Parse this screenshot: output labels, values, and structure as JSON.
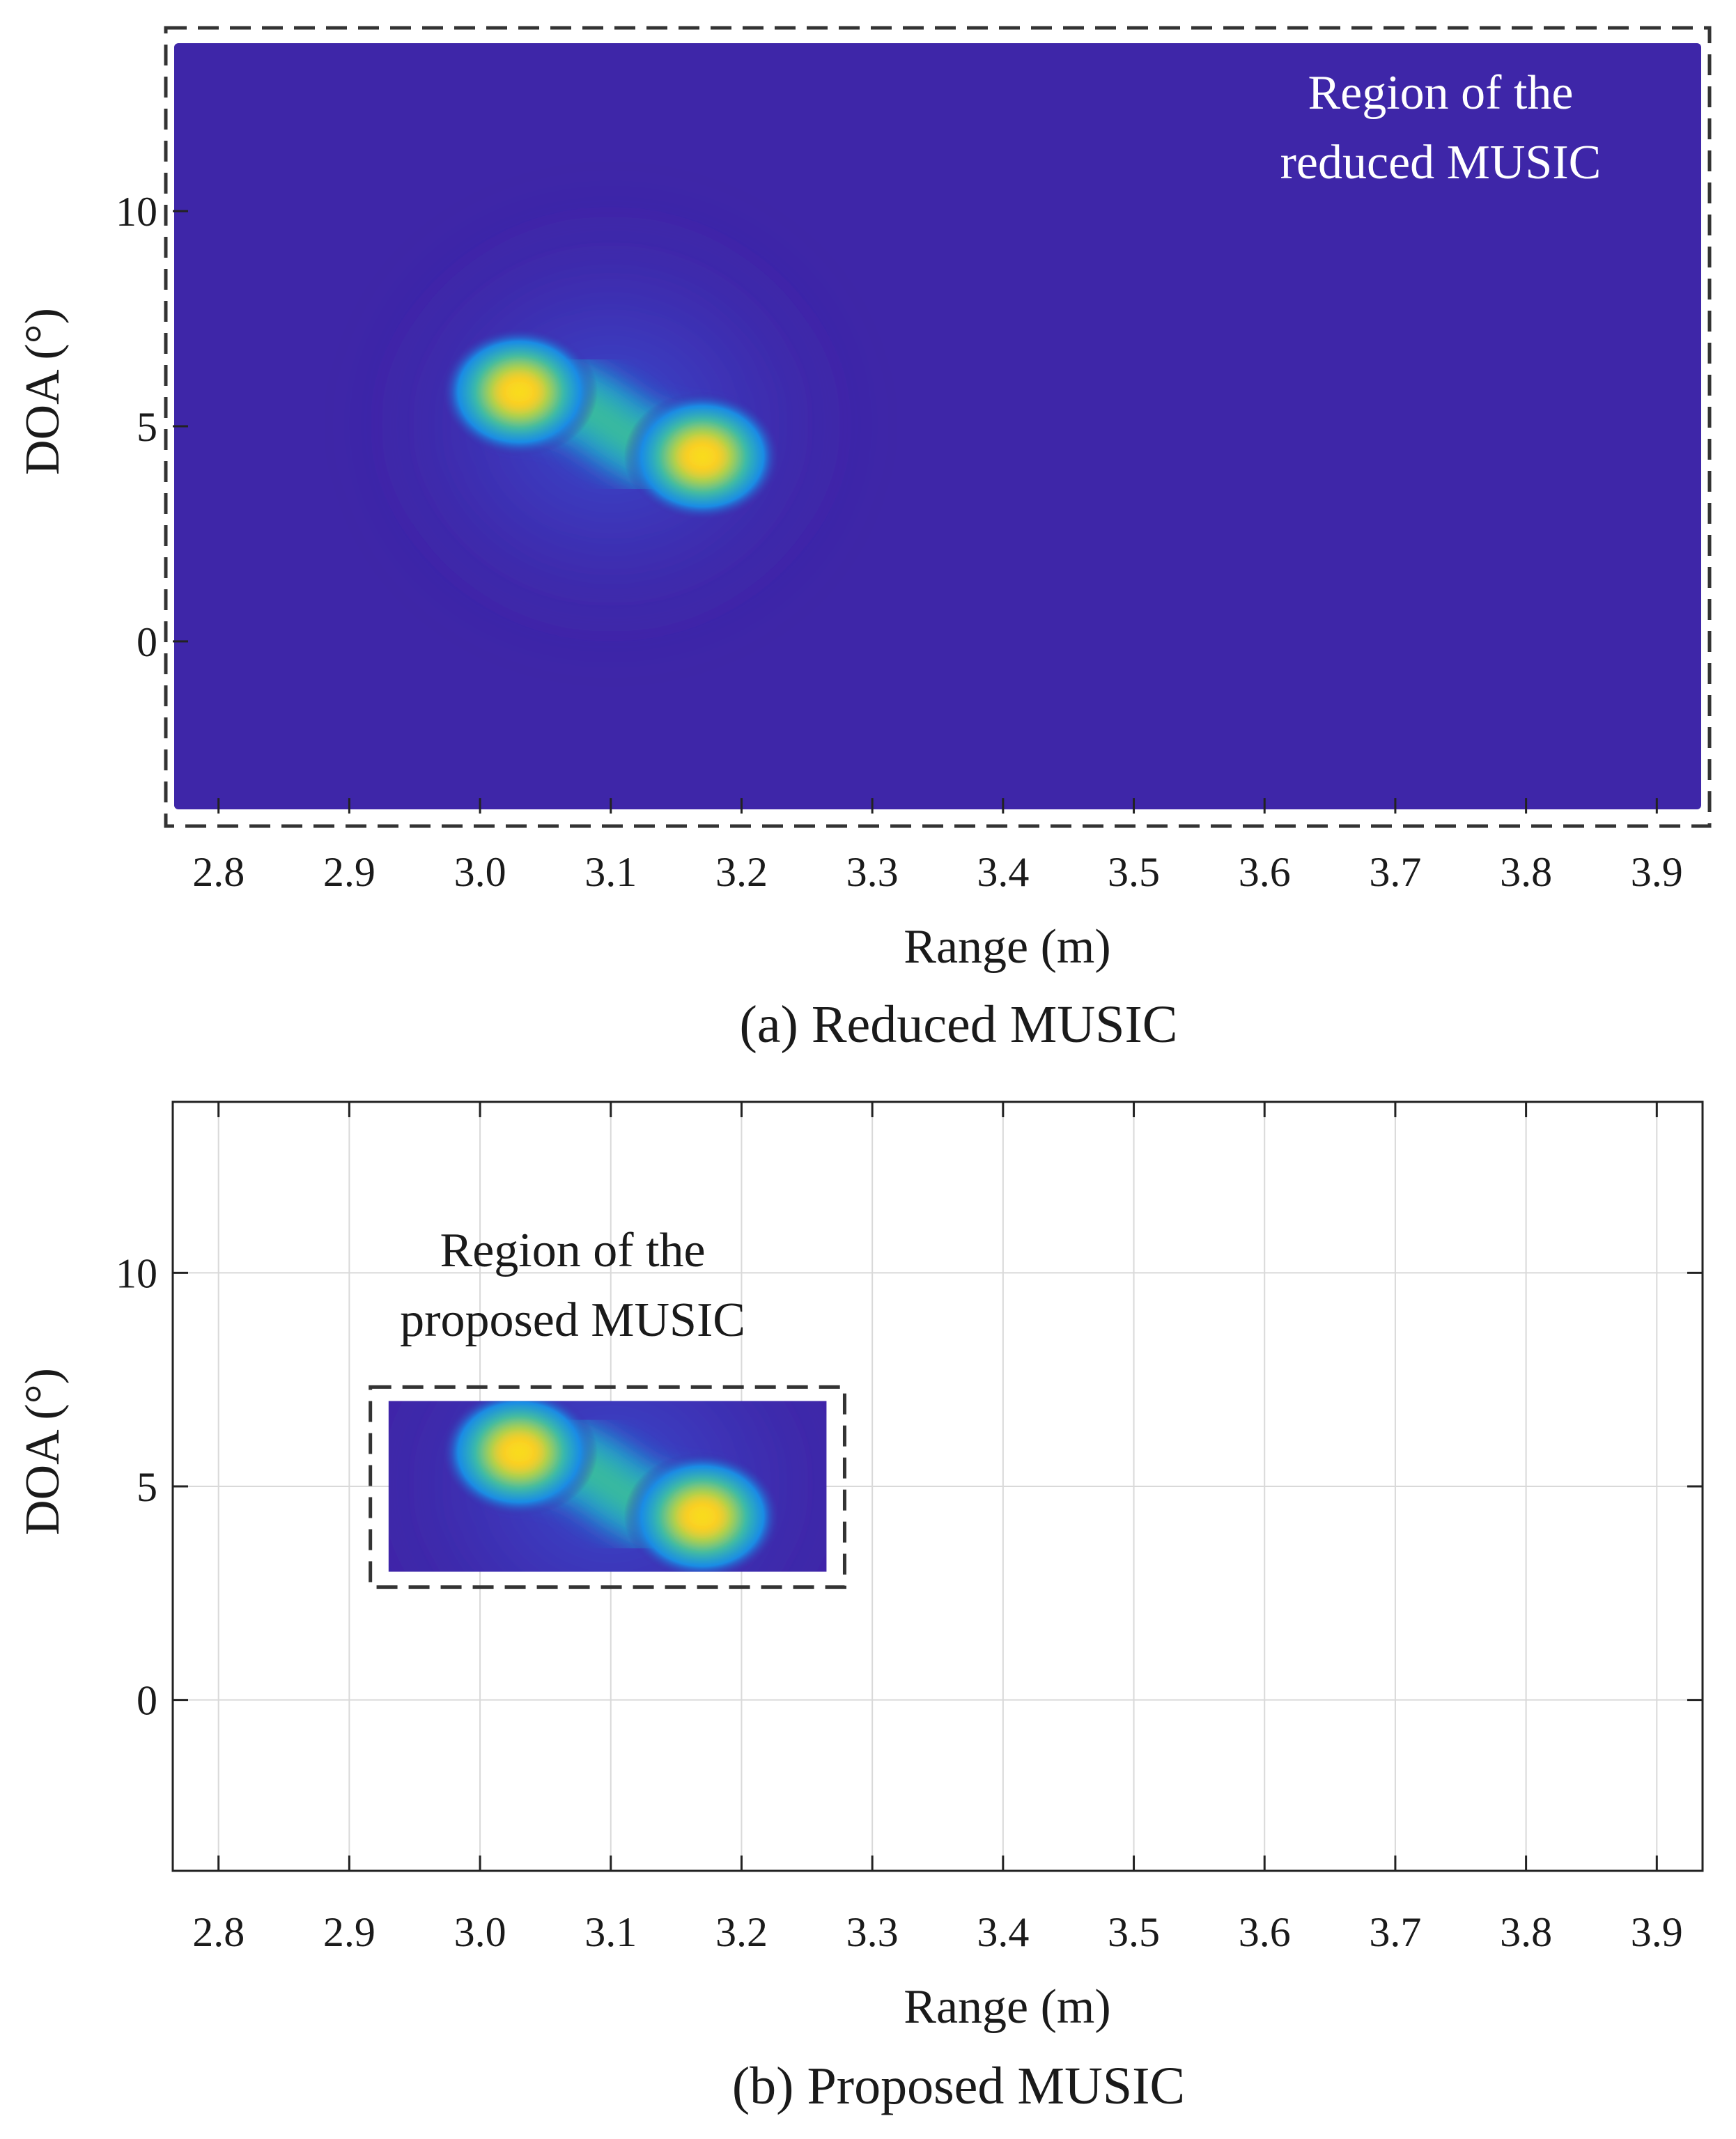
{
  "chart_data": [
    {
      "type": "heatmap",
      "caption": "(a) Reduced MUSIC",
      "xlabel": "Range (m)",
      "ylabel": "DOA (°)",
      "xlim": [
        2.765,
        3.935
      ],
      "ylim": [
        -4,
        14
      ],
      "xticks": [
        "2.8",
        "2.9",
        "3.0",
        "3.1",
        "3.2",
        "3.3",
        "3.4",
        "3.5",
        "3.6",
        "3.7",
        "3.8",
        "3.9"
      ],
      "yticks": [
        "0",
        "5",
        "10"
      ],
      "grid": false,
      "annotation": [
        "Region of the",
        "reduced MUSIC"
      ],
      "region": {
        "x": [
          2.765,
          3.935
        ],
        "y": [
          -4,
          14
        ]
      },
      "peaks": [
        {
          "range": 3.03,
          "doa": 5.8
        },
        {
          "range": 3.17,
          "doa": 4.3
        }
      ],
      "colormap": "parula",
      "background_color": "#3e26a8"
    },
    {
      "type": "heatmap",
      "caption": "(b) Proposed MUSIC",
      "xlabel": "Range (m)",
      "ylabel": "DOA (°)",
      "xlim": [
        2.765,
        3.935
      ],
      "ylim": [
        -4,
        14
      ],
      "xticks": [
        "2.8",
        "2.9",
        "3.0",
        "3.1",
        "3.2",
        "3.3",
        "3.4",
        "3.5",
        "3.6",
        "3.7",
        "3.8",
        "3.9"
      ],
      "yticks": [
        "0",
        "5",
        "10"
      ],
      "grid": true,
      "annotation": [
        "Region of the",
        "proposed MUSIC"
      ],
      "region": {
        "x": [
          2.93,
          3.265
        ],
        "y": [
          3,
          7
        ]
      },
      "peaks": [
        {
          "range": 3.03,
          "doa": 5.8
        },
        {
          "range": 3.17,
          "doa": 4.3
        }
      ],
      "colormap": "parula",
      "background_color": "#3e26a8"
    }
  ]
}
